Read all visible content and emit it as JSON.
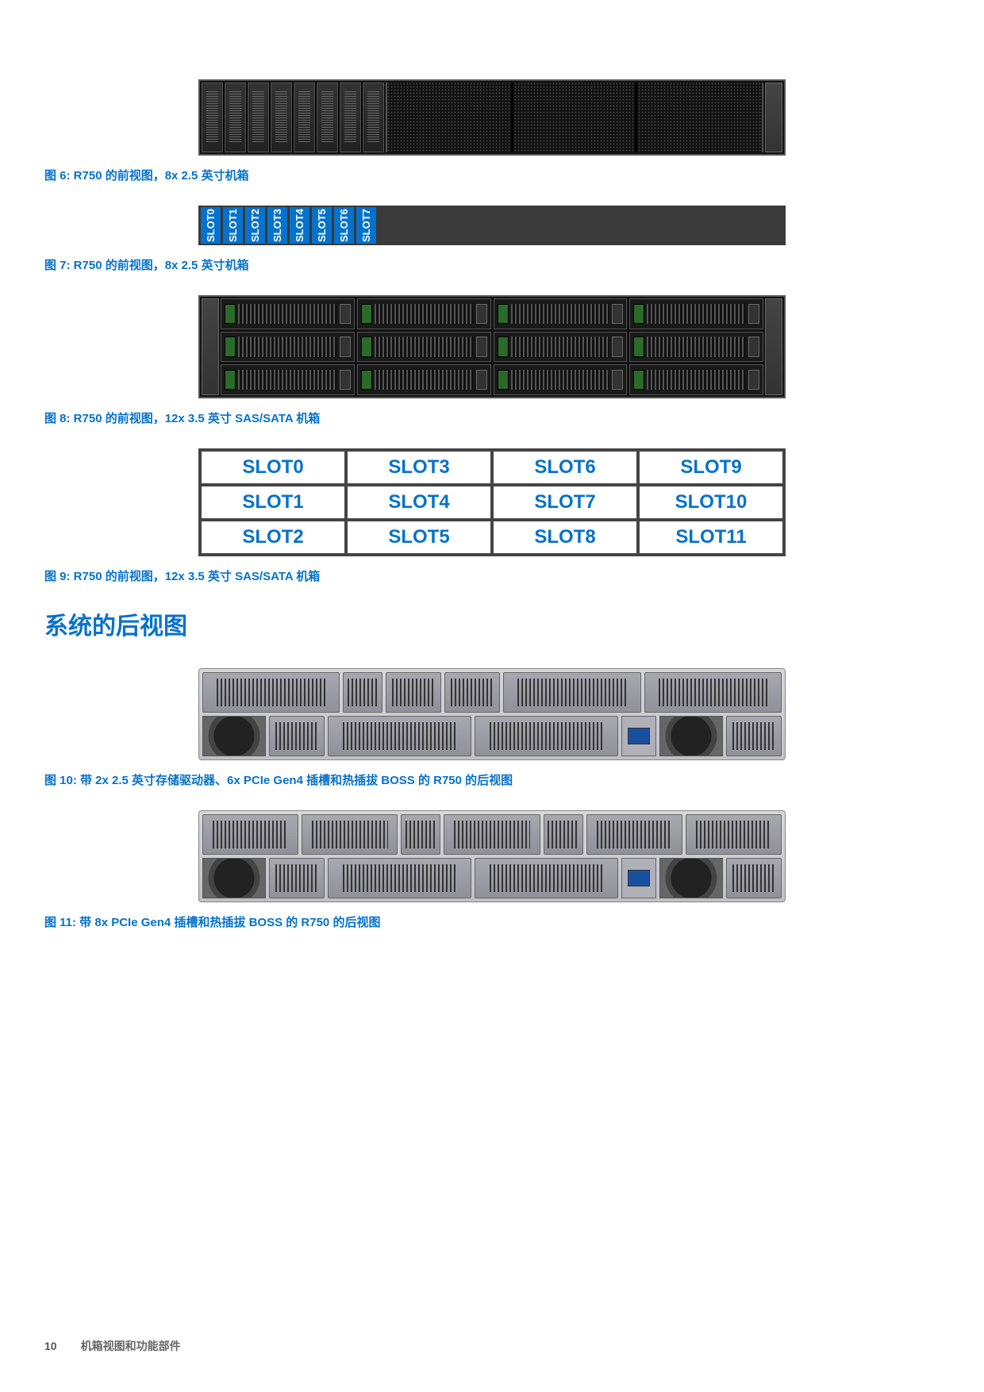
{
  "colors": {
    "accent": "#0672cb",
    "bg": "#ffffff",
    "chassis_dark": "#111111",
    "metal": "#c0c0c6",
    "slot_bar": "#3a3a3a"
  },
  "fig6": {
    "caption": "图 6: R750 的前视图，8x 2.5 英寸机箱"
  },
  "fig7": {
    "caption": "图 7: R750 的前视图，8x 2.5 英寸机箱",
    "slots": [
      "SLOT0",
      "SLOT1",
      "SLOT2",
      "SLOT3",
      "SLOT4",
      "SLOT5",
      "SLOT6",
      "SLOT7"
    ]
  },
  "fig8": {
    "caption": "图 8: R750 的前视图，12x 3.5 英寸 SAS/SATA 机箱"
  },
  "fig9": {
    "caption": "图 9: R750 的前视图，12x 3.5 英寸 SAS/SATA 机箱",
    "grid": [
      [
        "SLOT0",
        "SLOT3",
        "SLOT6",
        "SLOT9"
      ],
      [
        "SLOT1",
        "SLOT4",
        "SLOT7",
        "SLOT10"
      ],
      [
        "SLOT2",
        "SLOT5",
        "SLOT8",
        "SLOT11"
      ]
    ]
  },
  "section_rear_title": "系统的后视图",
  "fig10": {
    "caption": "图 10: 带 2x 2.5 英寸存储驱动器、6x PCIe Gen4 插槽和热插拔 BOSS 的 R750 的后视图"
  },
  "fig11": {
    "caption": "图 11: 带 8x PCIe Gen4 插槽和热插拔 BOSS 的 R750 的后视图"
  },
  "footer": {
    "page": "10",
    "title": "机箱视图和功能部件"
  }
}
